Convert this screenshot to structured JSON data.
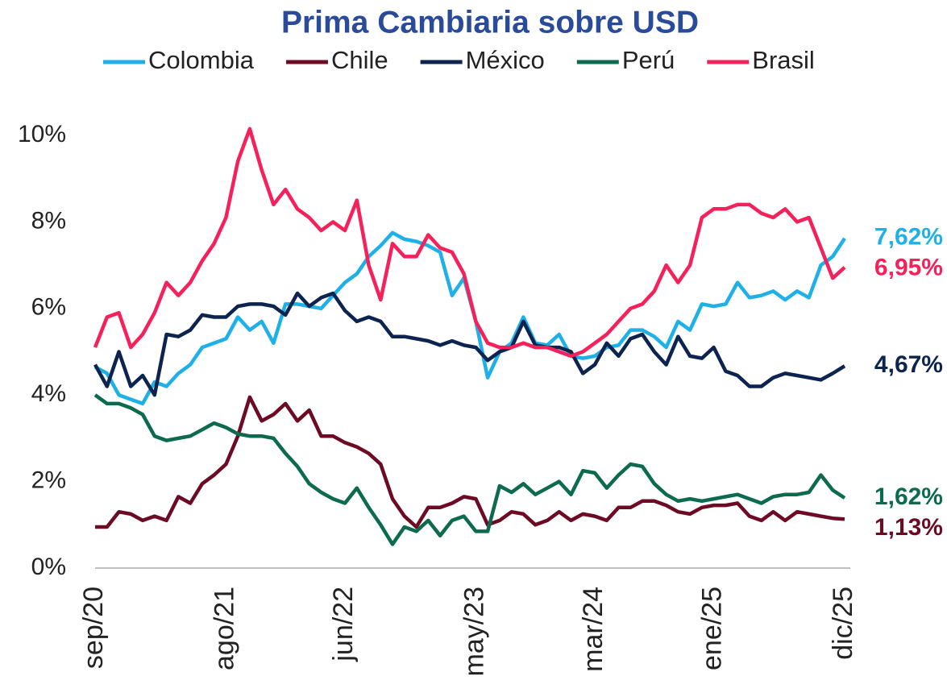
{
  "chart_data": {
    "type": "line",
    "title": "Prima Cambiaria sobre USD",
    "categories": [
      "sep/20",
      null,
      null,
      null,
      null,
      null,
      null,
      null,
      null,
      null,
      null,
      "ago/21",
      null,
      null,
      null,
      null,
      null,
      null,
      null,
      null,
      null,
      "jun/22",
      null,
      null,
      null,
      null,
      null,
      null,
      null,
      null,
      null,
      null,
      "may/23",
      null,
      null,
      null,
      null,
      null,
      null,
      null,
      null,
      null,
      "mar/24",
      null,
      null,
      null,
      null,
      null,
      null,
      null,
      null,
      null,
      "ene/25",
      null,
      null,
      null,
      null,
      null,
      null,
      null,
      null,
      null,
      null,
      "dic/25"
    ],
    "ylim": [
      0,
      10
    ],
    "yticks": [
      {
        "value": 0,
        "label": "0%"
      },
      {
        "value": 2,
        "label": "2%"
      },
      {
        "value": 4,
        "label": "4%"
      },
      {
        "value": 6,
        "label": "6%"
      },
      {
        "value": 8,
        "label": "8%"
      },
      {
        "value": 10,
        "label": "10%"
      }
    ],
    "grid": false,
    "legend": "top",
    "series": [
      {
        "name": "Colombia",
        "color": "#1fb0e8",
        "values": [
          4.65,
          4.5,
          4.0,
          3.9,
          3.8,
          4.3,
          4.2,
          4.5,
          4.7,
          5.1,
          5.2,
          5.3,
          5.8,
          5.5,
          5.7,
          5.2,
          6.1,
          6.1,
          6.05,
          6.0,
          6.3,
          6.6,
          6.8,
          7.2,
          7.45,
          7.75,
          7.6,
          7.55,
          7.45,
          7.3,
          6.3,
          6.7,
          5.7,
          4.4,
          5.0,
          5.2,
          5.8,
          5.2,
          5.15,
          5.4,
          4.9,
          4.85,
          4.9,
          5.1,
          5.15,
          5.5,
          5.5,
          5.35,
          5.1,
          5.7,
          5.5,
          6.1,
          6.05,
          6.1,
          6.6,
          6.25,
          6.3,
          6.4,
          6.2,
          6.4,
          6.25,
          7.0,
          7.2,
          7.62
        ],
        "value_labels": [
          null,
          null,
          null,
          null,
          null,
          null,
          null,
          null,
          null,
          null,
          null,
          null,
          null,
          null,
          null,
          null,
          null,
          null,
          null,
          null,
          null,
          null,
          null,
          null,
          null,
          null,
          null,
          null,
          null,
          null,
          null,
          null,
          null,
          null,
          null,
          null,
          null,
          null,
          null,
          null,
          null,
          null,
          null,
          null,
          null,
          null,
          null,
          null,
          null,
          null,
          null,
          null,
          null,
          null,
          null,
          null,
          null,
          null,
          null,
          null,
          null,
          null,
          null,
          "7,62%"
        ]
      },
      {
        "name": "Chile",
        "color": "#6e0b24",
        "values": [
          0.95,
          0.95,
          1.3,
          1.25,
          1.1,
          1.2,
          1.1,
          1.65,
          1.5,
          1.95,
          2.15,
          2.4,
          3.05,
          3.95,
          3.4,
          3.55,
          3.8,
          3.4,
          3.65,
          3.05,
          3.05,
          2.9,
          2.8,
          2.65,
          2.4,
          1.6,
          1.2,
          0.95,
          1.4,
          1.4,
          1.5,
          1.65,
          1.6,
          1.0,
          1.1,
          1.3,
          1.25,
          1.0,
          1.1,
          1.3,
          1.1,
          1.25,
          1.2,
          1.1,
          1.4,
          1.4,
          1.55,
          1.55,
          1.45,
          1.3,
          1.25,
          1.4,
          1.45,
          1.45,
          1.5,
          1.2,
          1.1,
          1.3,
          1.1,
          1.3,
          1.25,
          1.2,
          1.15,
          1.13
        ],
        "value_labels": [
          null,
          null,
          null,
          null,
          null,
          null,
          null,
          null,
          null,
          null,
          null,
          null,
          null,
          null,
          null,
          null,
          null,
          null,
          null,
          null,
          null,
          null,
          null,
          null,
          null,
          null,
          null,
          null,
          null,
          null,
          null,
          null,
          null,
          null,
          null,
          null,
          null,
          null,
          null,
          null,
          null,
          null,
          null,
          null,
          null,
          null,
          null,
          null,
          null,
          null,
          null,
          null,
          null,
          null,
          null,
          null,
          null,
          null,
          null,
          null,
          null,
          null,
          null,
          "1,13%"
        ]
      },
      {
        "name": "México",
        "color": "#0d2450",
        "values": [
          4.7,
          4.2,
          5.0,
          4.2,
          4.45,
          4.0,
          5.4,
          5.35,
          5.5,
          5.85,
          5.8,
          5.8,
          6.05,
          6.1,
          6.1,
          6.05,
          5.85,
          6.35,
          6.05,
          6.25,
          6.35,
          5.95,
          5.7,
          5.8,
          5.7,
          5.35,
          5.35,
          5.3,
          5.25,
          5.15,
          5.25,
          5.15,
          5.1,
          4.8,
          5.0,
          5.1,
          5.7,
          5.15,
          5.1,
          5.1,
          5.0,
          4.5,
          4.7,
          5.2,
          4.9,
          5.3,
          5.4,
          5.0,
          4.7,
          5.35,
          4.9,
          4.85,
          5.1,
          4.55,
          4.45,
          4.2,
          4.2,
          4.4,
          4.5,
          4.45,
          4.4,
          4.35,
          4.5,
          4.67
        ],
        "value_labels": [
          null,
          null,
          null,
          null,
          null,
          null,
          null,
          null,
          null,
          null,
          null,
          null,
          null,
          null,
          null,
          null,
          null,
          null,
          null,
          null,
          null,
          null,
          null,
          null,
          null,
          null,
          null,
          null,
          null,
          null,
          null,
          null,
          null,
          null,
          null,
          null,
          null,
          null,
          null,
          null,
          null,
          null,
          null,
          null,
          null,
          null,
          null,
          null,
          null,
          null,
          null,
          null,
          null,
          null,
          null,
          null,
          null,
          null,
          null,
          null,
          null,
          null,
          null,
          "4,67%"
        ]
      },
      {
        "name": "Perú",
        "color": "#0c6b4f",
        "values": [
          4.0,
          3.8,
          3.8,
          3.7,
          3.55,
          3.05,
          2.95,
          3.0,
          3.05,
          3.2,
          3.35,
          3.25,
          3.1,
          3.05,
          3.05,
          3.0,
          2.65,
          2.35,
          1.95,
          1.75,
          1.6,
          1.5,
          1.85,
          1.4,
          1.0,
          0.55,
          0.95,
          0.85,
          1.1,
          0.75,
          1.1,
          1.2,
          0.85,
          0.85,
          1.9,
          1.75,
          1.95,
          1.7,
          1.85,
          2.0,
          1.7,
          2.25,
          2.2,
          1.85,
          2.15,
          2.4,
          2.35,
          1.95,
          1.7,
          1.55,
          1.6,
          1.55,
          1.6,
          1.65,
          1.7,
          1.6,
          1.5,
          1.65,
          1.7,
          1.7,
          1.75,
          2.15,
          1.8,
          1.62
        ],
        "value_labels": [
          null,
          null,
          null,
          null,
          null,
          null,
          null,
          null,
          null,
          null,
          null,
          null,
          null,
          null,
          null,
          null,
          null,
          null,
          null,
          null,
          null,
          null,
          null,
          null,
          null,
          null,
          null,
          null,
          null,
          null,
          null,
          null,
          null,
          null,
          null,
          null,
          null,
          null,
          null,
          null,
          null,
          null,
          null,
          null,
          null,
          null,
          null,
          null,
          null,
          null,
          null,
          null,
          null,
          null,
          null,
          null,
          null,
          null,
          null,
          null,
          null,
          null,
          null,
          "1,62%"
        ]
      },
      {
        "name": "Brasil",
        "color": "#f4215a",
        "values": [
          5.1,
          5.8,
          5.9,
          5.1,
          5.4,
          5.9,
          6.6,
          6.3,
          6.6,
          7.1,
          7.5,
          8.1,
          9.4,
          10.15,
          9.2,
          8.4,
          8.75,
          8.3,
          8.1,
          7.8,
          8.0,
          7.8,
          8.5,
          7.0,
          6.2,
          7.5,
          7.2,
          7.2,
          7.7,
          7.4,
          7.3,
          6.8,
          5.7,
          5.2,
          5.1,
          5.1,
          5.2,
          5.1,
          5.1,
          5.0,
          4.9,
          5.0,
          5.2,
          5.4,
          5.7,
          6.0,
          6.1,
          6.4,
          7.0,
          6.6,
          7.0,
          8.1,
          8.3,
          8.3,
          8.4,
          8.4,
          8.2,
          8.1,
          8.3,
          8.0,
          8.1,
          7.4,
          6.7,
          6.95
        ],
        "value_labels": [
          null,
          null,
          null,
          null,
          null,
          null,
          null,
          null,
          null,
          null,
          null,
          null,
          null,
          null,
          null,
          null,
          null,
          null,
          null,
          null,
          null,
          null,
          null,
          null,
          null,
          null,
          null,
          null,
          null,
          null,
          null,
          null,
          null,
          null,
          null,
          null,
          null,
          null,
          null,
          null,
          null,
          null,
          null,
          null,
          null,
          null,
          null,
          null,
          null,
          null,
          null,
          null,
          null,
          null,
          null,
          null,
          null,
          null,
          null,
          null,
          null,
          null,
          null,
          "6,95%"
        ]
      }
    ]
  }
}
